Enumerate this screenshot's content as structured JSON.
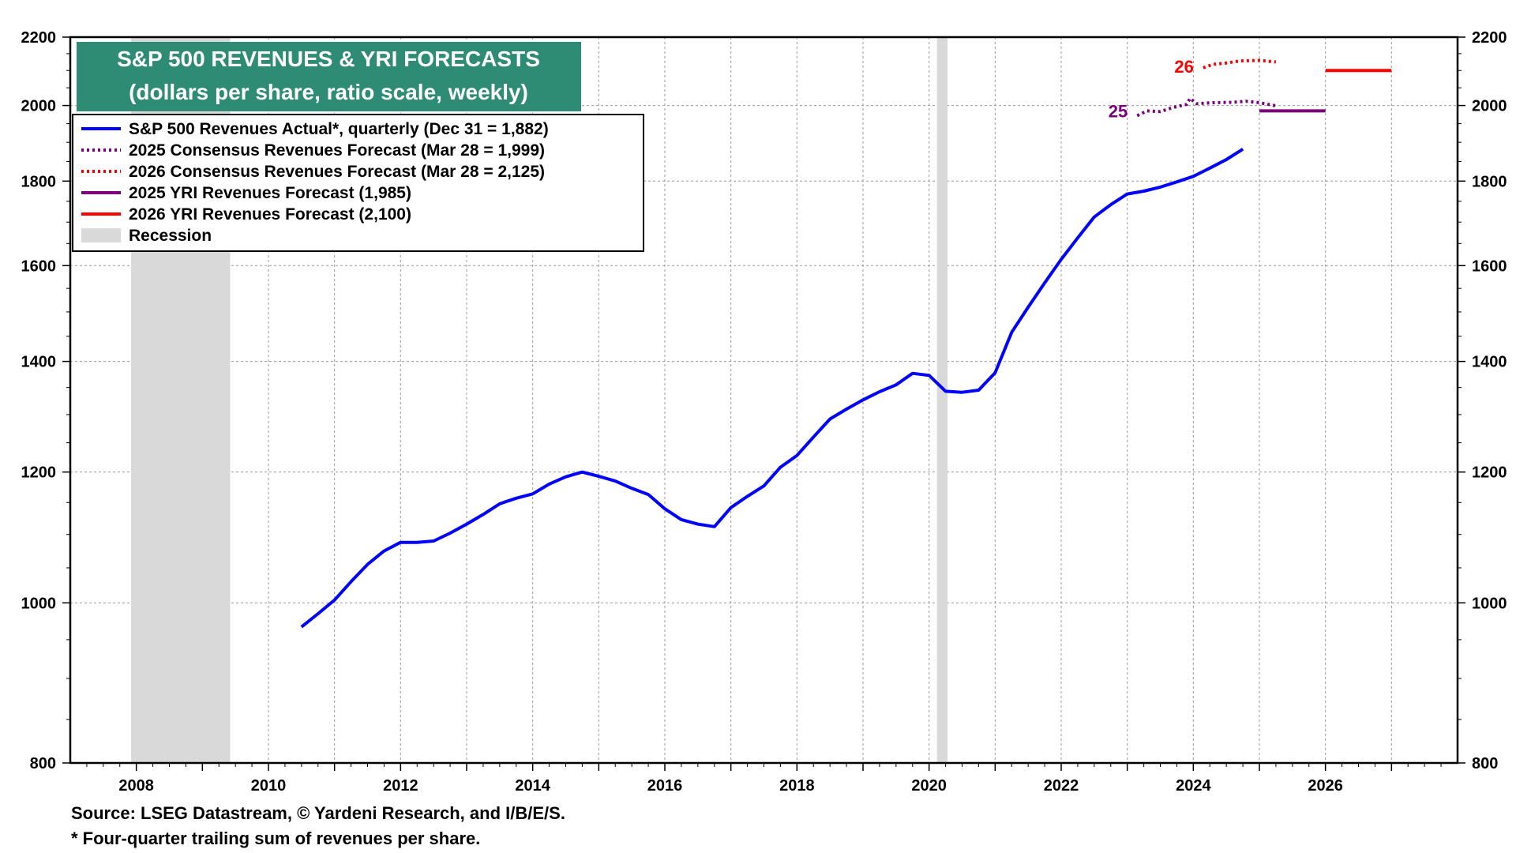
{
  "chart_data": {
    "type": "line",
    "title": "S&P 500 REVENUES & YRI FORECASTS",
    "subtitle": "(dollars per share, ratio scale, weekly)",
    "scale": "log",
    "ylim": [
      800,
      2200
    ],
    "y_ticks": [
      800,
      1000,
      1200,
      1400,
      1600,
      1800,
      2000,
      2200
    ],
    "y_tick_labels": [
      "800",
      "1000",
      "1200",
      "1400",
      "1600",
      "1800",
      "2000",
      "2200"
    ],
    "xlim": [
      2007,
      2028
    ],
    "x_ticks": [
      2008,
      2010,
      2012,
      2014,
      2016,
      2018,
      2020,
      2022,
      2024,
      2026
    ],
    "x_tick_labels": [
      "2008",
      "2010",
      "2012",
      "2014",
      "2016",
      "2018",
      "2020",
      "2022",
      "2024",
      "2026"
    ],
    "legend": [
      {
        "label": "S&P 500 Revenues Actual*, quarterly (Dec 31 = 1,882)",
        "color": "#0000ff",
        "style": "solid"
      },
      {
        "label": "2025 Consensus Revenues Forecast (Mar 28 = 1,999)",
        "color": "#7b007b",
        "style": "dotted"
      },
      {
        "label": "2026 Consensus Revenues Forecast (Mar 28 = 2,125)",
        "color": "#ff0000",
        "style": "dotted"
      },
      {
        "label": "2025 YRI Revenues Forecast (1,985)",
        "color": "#7b007b",
        "style": "solid"
      },
      {
        "label": "2026 YRI Revenues Forecast (2,100)",
        "color": "#ff0000",
        "style": "solid"
      },
      {
        "label": "Recession",
        "color": "#d9d9d9",
        "style": "band"
      }
    ],
    "recessions": [
      [
        2007.92,
        2009.42
      ],
      [
        2020.12,
        2020.28
      ]
    ],
    "series": [
      {
        "name": "S&P 500 Revenues Actual",
        "color": "#0000ff",
        "style": "solid",
        "points": [
          [
            2010.5,
            967
          ],
          [
            2010.75,
            985
          ],
          [
            2011.0,
            1004
          ],
          [
            2011.25,
            1030
          ],
          [
            2011.5,
            1055
          ],
          [
            2011.75,
            1075
          ],
          [
            2012.0,
            1088
          ],
          [
            2012.25,
            1088
          ],
          [
            2012.5,
            1090
          ],
          [
            2012.75,
            1102
          ],
          [
            2013.0,
            1116
          ],
          [
            2013.25,
            1131
          ],
          [
            2013.5,
            1148
          ],
          [
            2013.75,
            1157
          ],
          [
            2014.0,
            1164
          ],
          [
            2014.25,
            1180
          ],
          [
            2014.5,
            1192
          ],
          [
            2014.75,
            1200
          ],
          [
            2015.0,
            1193
          ],
          [
            2015.25,
            1185
          ],
          [
            2015.5,
            1173
          ],
          [
            2015.75,
            1163
          ],
          [
            2016.0,
            1140
          ],
          [
            2016.25,
            1123
          ],
          [
            2016.5,
            1116
          ],
          [
            2016.75,
            1112
          ],
          [
            2017.0,
            1142
          ],
          [
            2017.25,
            1160
          ],
          [
            2017.5,
            1177
          ],
          [
            2017.75,
            1208
          ],
          [
            2018.0,
            1228
          ],
          [
            2018.25,
            1260
          ],
          [
            2018.5,
            1292
          ],
          [
            2018.75,
            1310
          ],
          [
            2019.0,
            1327
          ],
          [
            2019.25,
            1342
          ],
          [
            2019.5,
            1355
          ],
          [
            2019.75,
            1377
          ],
          [
            2020.0,
            1373
          ],
          [
            2020.25,
            1343
          ],
          [
            2020.5,
            1341
          ],
          [
            2020.75,
            1345
          ],
          [
            2021.0,
            1378
          ],
          [
            2021.25,
            1458
          ],
          [
            2021.5,
            1510
          ],
          [
            2021.75,
            1562
          ],
          [
            2022.0,
            1614
          ],
          [
            2022.25,
            1663
          ],
          [
            2022.5,
            1712
          ],
          [
            2022.75,
            1742
          ],
          [
            2023.0,
            1768
          ],
          [
            2023.25,
            1775
          ],
          [
            2023.5,
            1785
          ],
          [
            2023.75,
            1798
          ],
          [
            2024.0,
            1812
          ],
          [
            2024.25,
            1833
          ],
          [
            2024.5,
            1855
          ],
          [
            2024.75,
            1882
          ]
        ]
      },
      {
        "name": "2025 Consensus Revenues Forecast",
        "color": "#7b007b",
        "style": "dotted",
        "label": "25",
        "points": [
          [
            2023.15,
            1972
          ],
          [
            2023.3,
            1985
          ],
          [
            2023.5,
            1983
          ],
          [
            2023.7,
            1995
          ],
          [
            2023.9,
            2003
          ],
          [
            2023.95,
            2020
          ],
          [
            2024.05,
            2005
          ],
          [
            2024.3,
            2008
          ],
          [
            2024.6,
            2009
          ],
          [
            2024.8,
            2012
          ],
          [
            2025.0,
            2008
          ],
          [
            2025.25,
            1999
          ]
        ]
      },
      {
        "name": "2026 Consensus Revenues Forecast",
        "color": "#ff0000",
        "style": "dotted",
        "label": "26",
        "points": [
          [
            2024.15,
            2108
          ],
          [
            2024.3,
            2118
          ],
          [
            2024.5,
            2122
          ],
          [
            2024.7,
            2128
          ],
          [
            2025.0,
            2130
          ],
          [
            2025.25,
            2125
          ]
        ]
      },
      {
        "name": "2025 YRI Revenues Forecast",
        "color": "#7b007b",
        "style": "solid",
        "points": [
          [
            2025.0,
            1985
          ],
          [
            2026.0,
            1985
          ]
        ]
      },
      {
        "name": "2026 YRI Revenues Forecast",
        "color": "#ff0000",
        "style": "solid",
        "points": [
          [
            2026.0,
            2100
          ],
          [
            2027.0,
            2100
          ]
        ]
      }
    ]
  },
  "footer": {
    "source": "Source: LSEG Datastream, © Yardeni Research, and I/B/E/S.",
    "note": "* Four-quarter trailing sum of revenues per share."
  }
}
